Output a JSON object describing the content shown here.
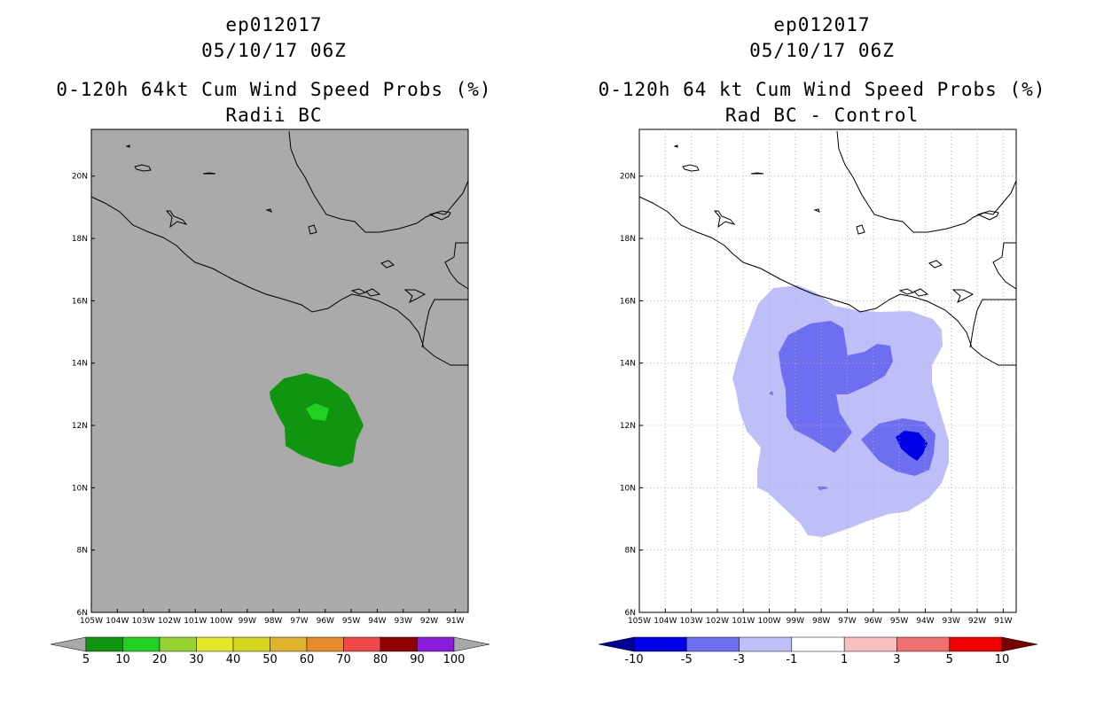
{
  "left": {
    "storm_id": "ep012017",
    "datetime": "05/10/17 06Z",
    "title": "0-120h 64kt Cum Wind Speed Probs (%)",
    "subtitle": "Radii BC",
    "map_background": "#aaaaaa",
    "x_ticks": [
      "105W",
      "104W",
      "103W",
      "102W",
      "101W",
      "100W",
      "99W",
      "98W",
      "97W",
      "96W",
      "95W",
      "94W",
      "93W",
      "92W",
      "91W"
    ],
    "y_ticks": [
      "6N",
      "8N",
      "10N",
      "12N",
      "14N",
      "16N",
      "18N",
      "20N"
    ],
    "colorbar_labels": [
      "5",
      "10",
      "20",
      "30",
      "40",
      "50",
      "60",
      "70",
      "80",
      "90",
      "100"
    ],
    "colorbar_colors": [
      "#119511",
      "#22d022",
      "#96d232",
      "#e6e628",
      "#d6d61e",
      "#e0b42e",
      "#e68a2a",
      "#f04848",
      "#900000",
      "#8c1cdc"
    ],
    "colorbar_end_color": "#a8a8a8"
  },
  "right": {
    "storm_id": "ep012017",
    "datetime": "05/10/17 06Z",
    "title": "0-120h 64 kt Cum Wind Speed Probs (%)",
    "subtitle": "Rad BC - Control",
    "map_background": "#ffffff",
    "x_ticks": [
      "105W",
      "104W",
      "103W",
      "102W",
      "101W",
      "100W",
      "99W",
      "98W",
      "97W",
      "96W",
      "95W",
      "94W",
      "93W",
      "92W",
      "91W"
    ],
    "y_ticks": [
      "6N",
      "8N",
      "10N",
      "12N",
      "14N",
      "16N",
      "18N",
      "20N"
    ],
    "colorbar_labels": [
      "-10",
      "-5",
      "-3",
      "-1",
      "1",
      "3",
      "5",
      "10"
    ],
    "colorbar_colors": [
      "#0000e6",
      "#6e6ef0",
      "#bebef8",
      "#ffffff",
      "#f8c0c0",
      "#f07070",
      "#f00000"
    ],
    "colorbar_low_color": "#000096",
    "colorbar_high_color": "#780000"
  }
}
